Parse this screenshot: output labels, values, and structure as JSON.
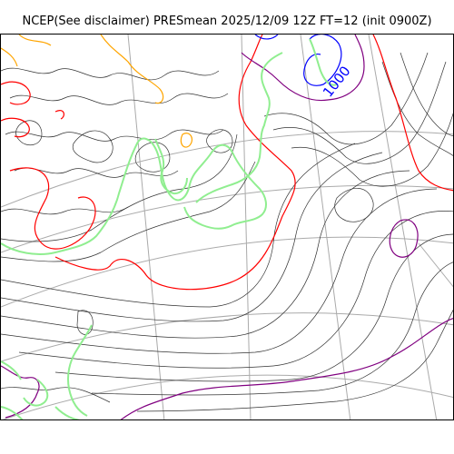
{
  "title": "NCEP(See disclaimer) PRESmean 2025/12/09 12Z FT=12 (init 0900Z)",
  "contour_label": "1000",
  "colors": {
    "isobar_regular": "#333333",
    "isobar_red": "#ff0000",
    "isobar_blue": "#0000ff",
    "isobar_purple": "#800080",
    "isobar_orange": "#ffa500",
    "coastline": "#90ee90",
    "graticule": "#aaaaaa"
  }
}
